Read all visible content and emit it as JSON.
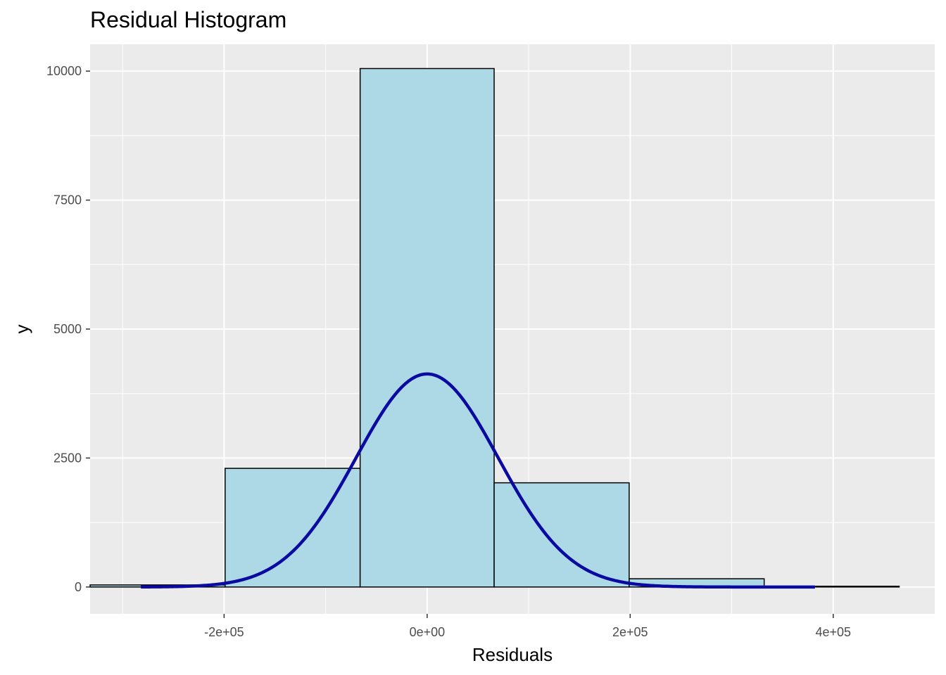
{
  "chart_data": {
    "type": "bar",
    "title": "Residual Histogram",
    "xlabel": "Residuals",
    "ylabel": "y",
    "xlim": [
      -332000,
      500000
    ],
    "ylim": [
      -520,
      10520
    ],
    "x_ticks": [
      {
        "value": -200000,
        "label": "-2e+05"
      },
      {
        "value": 0,
        "label": "0e+00"
      },
      {
        "value": 200000,
        "label": "2e+05"
      },
      {
        "value": 400000,
        "label": "4e+05"
      }
    ],
    "y_ticks": [
      {
        "value": 0,
        "label": "0"
      },
      {
        "value": 2500,
        "label": "2500"
      },
      {
        "value": 5000,
        "label": "5000"
      },
      {
        "value": 7500,
        "label": "7500"
      },
      {
        "value": 10000,
        "label": "10000"
      }
    ],
    "bins": [
      {
        "x0": -332000,
        "x1": -199000,
        "count": 40
      },
      {
        "x0": -199000,
        "x1": -66000,
        "count": 2300
      },
      {
        "x0": -66000,
        "x1": 66000,
        "count": 10050
      },
      {
        "x0": 66000,
        "x1": 199000,
        "count": 2020
      },
      {
        "x0": 199000,
        "x1": 332000,
        "count": 160
      },
      {
        "x0": 332000,
        "x1": 465000,
        "count": 15
      }
    ],
    "density_curve": {
      "type": "line",
      "color": "#0a0aa0",
      "mean": 0,
      "sd": 70000,
      "peak": 4130,
      "x_range": [
        -282000,
        382000
      ]
    },
    "colors": {
      "panel_bg": "#ebebeb",
      "grid": "#ffffff",
      "bar_fill": "#add8e6",
      "bar_stroke": "#000000"
    }
  }
}
